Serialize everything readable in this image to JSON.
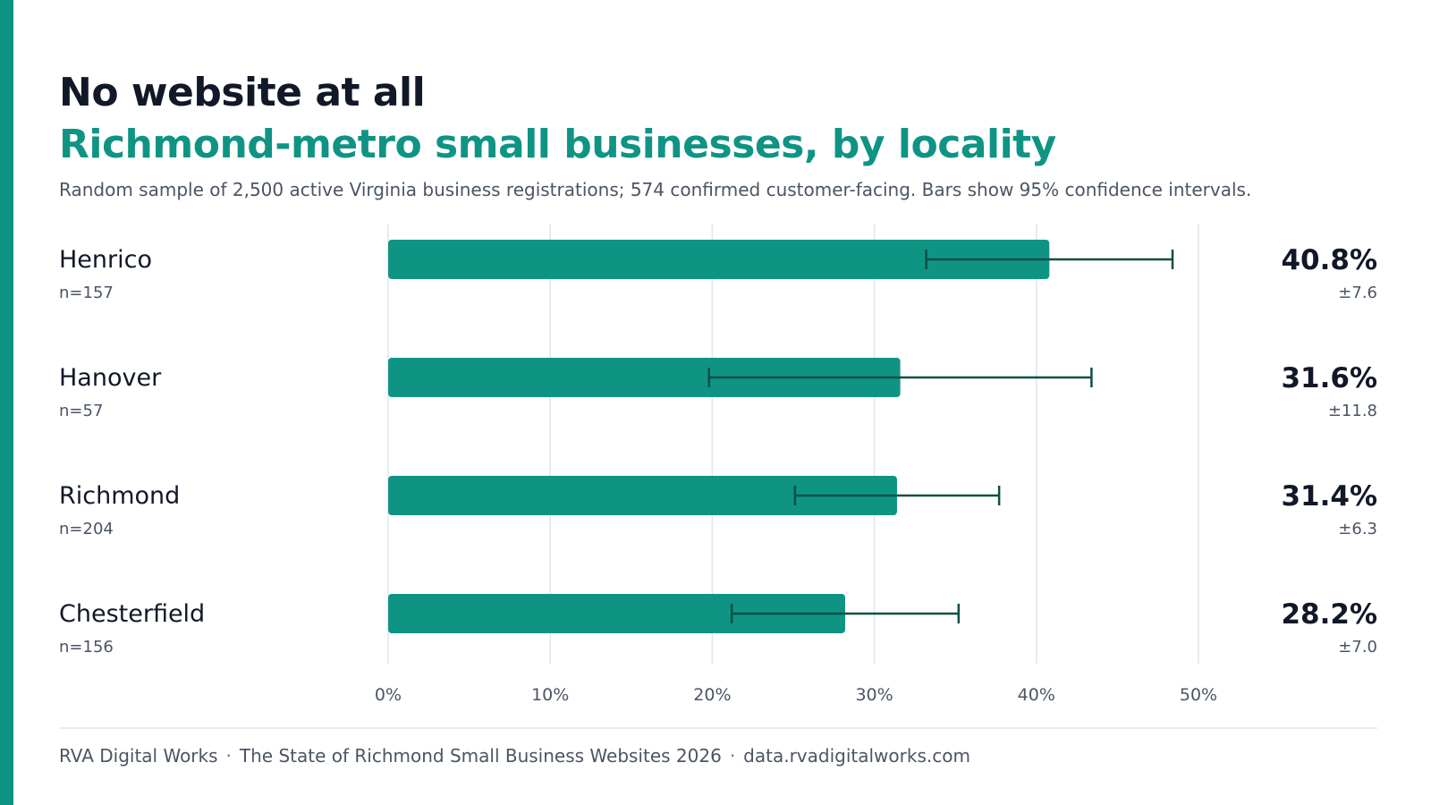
{
  "chart_data": {
    "type": "bar",
    "orientation": "horizontal",
    "title": "No website at all",
    "subtitle": "Richmond-metro small businesses, by locality",
    "note": "Random sample of 2,500 active Virginia business registrations; 574 confirmed customer-facing. Bars show 95% confidence intervals.",
    "categories": [
      "Henrico",
      "Hanover",
      "Richmond",
      "Chesterfield"
    ],
    "sample_sizes": [
      "n=157",
      "n=57",
      "n=204",
      "n=156"
    ],
    "values": [
      40.8,
      31.6,
      31.4,
      28.2
    ],
    "value_labels": [
      "40.8%",
      "31.6%",
      "31.4%",
      "28.2%"
    ],
    "error_margins": [
      7.6,
      11.8,
      6.3,
      7.0
    ],
    "error_labels": [
      "±7.6",
      "±11.8",
      "±6.3",
      "±7.0"
    ],
    "x_ticks": [
      0,
      10,
      20,
      30,
      40,
      50
    ],
    "x_tick_labels": [
      "0%",
      "10%",
      "20%",
      "30%",
      "40%",
      "50%"
    ],
    "xlim": [
      0,
      50
    ],
    "grid": true,
    "legend": "none"
  },
  "colors": {
    "accent": "#0f9484",
    "bar": "#0f9484",
    "error_bar": "#0b4f45",
    "grid": "#dde6ef",
    "title": "#111827",
    "muted": "#4b5563"
  },
  "footer": {
    "brand": "RVA Digital Works",
    "report": "The State of Richmond Small Business Websites 2026",
    "url": "data.rvadigitalworks.com",
    "separator": "·"
  }
}
